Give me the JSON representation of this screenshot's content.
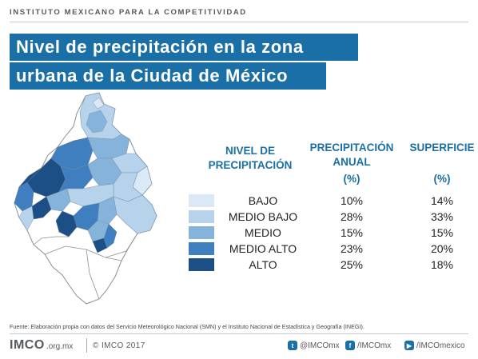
{
  "header": {
    "org": "INSTITUTO MEXICANO PARA LA COMPETITIVIDAD"
  },
  "title": {
    "line1": "Nivel de precipitación en la zona",
    "line2": "urbana de la Ciudad de México"
  },
  "colors": {
    "accent": "#1a6fa6",
    "bajo": "#dbe9f6",
    "medio_bajo": "#b7d3ec",
    "medio": "#86b3da",
    "medio_alto": "#3f7fbf",
    "alto": "#1c4f86"
  },
  "table": {
    "col1_header": "NIVEL DE PRECIPITACIÓN",
    "col2_header": "PRECIPITACIÓN ANUAL",
    "col3_header": "SUPERFICIE",
    "col2_unit": "(%)",
    "col3_unit": "(%)",
    "rows": [
      {
        "label": "BAJO",
        "precip": "10%",
        "surface": "14%",
        "color": "#dbe9f6"
      },
      {
        "label": "MEDIO BAJO",
        "precip": "28%",
        "surface": "33%",
        "color": "#b7d3ec"
      },
      {
        "label": "MEDIO",
        "precip": "15%",
        "surface": "15%",
        "color": "#86b3da"
      },
      {
        "label": "MEDIO ALTO",
        "precip": "23%",
        "surface": "20%",
        "color": "#3f7fbf"
      },
      {
        "label": "ALTO",
        "precip": "25%",
        "surface": "18%",
        "color": "#1c4f86"
      }
    ]
  },
  "source": "Fuente: Elaboración propia con datos del Servicio Meteorológico Nacional (SMN) y el Instituto Nacional de Estadística y Geografía (INEGI).",
  "footer": {
    "logo": "IMCO",
    "url": ".org.mx",
    "copyright": "© IMCO 2017",
    "twitter_icon": "twitter-icon",
    "twitter": "@IMCOmx",
    "facebook_icon": "facebook-icon",
    "facebook": "/IMCOmx",
    "youtube_icon": "youtube-icon",
    "youtube": "/IMCOmexico"
  }
}
